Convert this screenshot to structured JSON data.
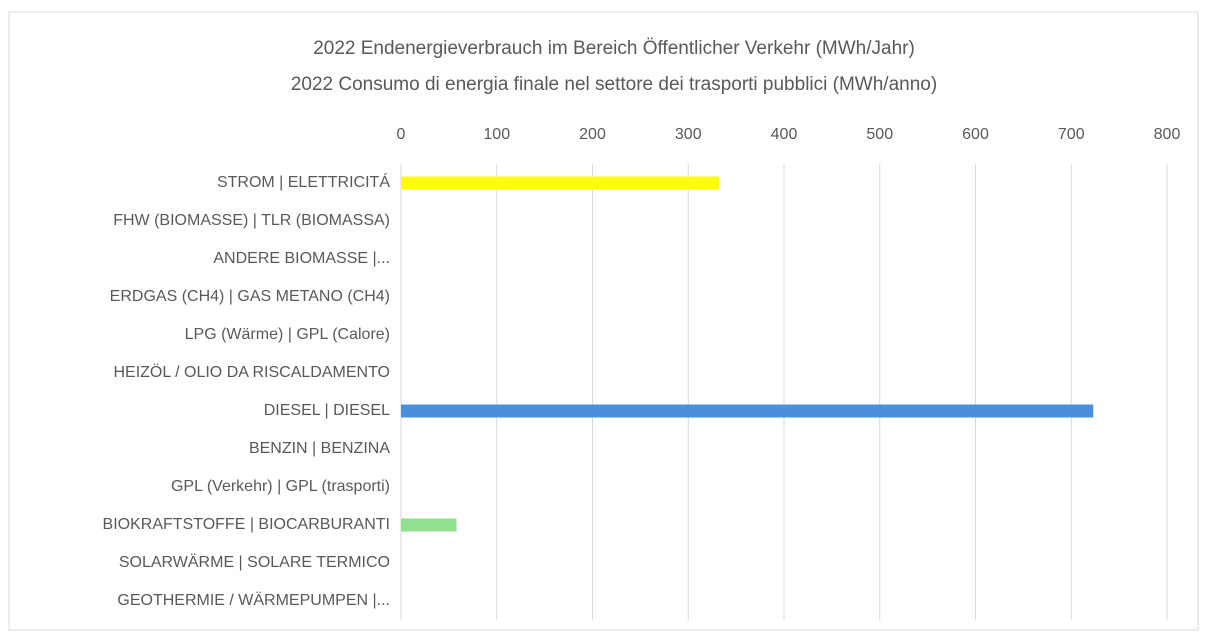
{
  "chart_data": {
    "type": "bar",
    "orientation": "horizontal",
    "title": "2022 Endenergieverbrauch  im Bereich  Öffentlicher Verkehr (MWh/Jahr)",
    "subtitle": "2022 Consumo di energia finale nel settore dei trasporti pubblici  (MWh/anno)",
    "categories": [
      "STROM | ELETTRICITÁ",
      "FHW (BIOMASSE) | TLR (BIOMASSA)",
      "ANDERE BIOMASSE |...",
      "ERDGAS (CH4) | GAS METANO (CH4)",
      "LPG (Wärme) | GPL (Calore)",
      "HEIZÖL / OLIO DA RISCALDAMENTO",
      "DIESEL | DIESEL",
      "BENZIN | BENZINA",
      "GPL (Verkehr) | GPL (trasporti)",
      "BIOKRAFTSTOFFE | BIOCARBURANTI",
      "SOLARWÄRME | SOLARE TERMICO",
      "GEOTHERMIE / WÄRMEPUMPEN |..."
    ],
    "values": [
      332,
      0,
      0,
      0,
      0,
      0,
      723,
      0,
      0,
      58,
      0,
      0
    ],
    "colors": [
      "#ffff00",
      "#ffff00",
      "#ffff00",
      "#ffff00",
      "#ffff00",
      "#ffff00",
      "#4a8fdc",
      "#4a8fdc",
      "#4a8fdc",
      "#90e090",
      "#90e090",
      "#90e090"
    ],
    "xlim": [
      0,
      800
    ],
    "xticks": [
      0,
      100,
      200,
      300,
      400,
      500,
      600,
      700,
      800
    ],
    "grid": true
  }
}
